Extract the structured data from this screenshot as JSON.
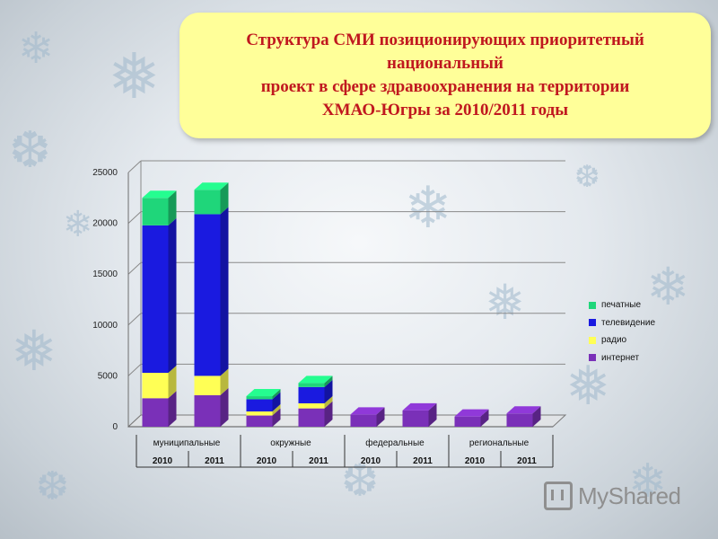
{
  "title_lines": [
    "Структура СМИ позиционирующих приоритетный",
    "национальный",
    "проект в сфере здравоохранения на территории",
    "ХМАО-Югры за 2010/2011 годы"
  ],
  "colors": {
    "title": "#c0181f",
    "title_box": "#ffff99",
    "печатные": "#1fd67a",
    "телевидение": "#1a1ae0",
    "радио": "#ffff55",
    "интернет": "#7a30b8"
  },
  "watermark_text": "MyShared",
  "chart_data": {
    "type": "bar",
    "stacked": true,
    "three_d": true,
    "group_labels": [
      "муниципальные",
      "окружные",
      "федеральные",
      "региональные"
    ],
    "categories": [
      "2010",
      "2011",
      "2010",
      "2011",
      "2010",
      "2011",
      "2010",
      "2011"
    ],
    "series": [
      {
        "name": "интернет",
        "values": [
          2800,
          3100,
          1100,
          1800,
          1200,
          1600,
          1000,
          1300
        ]
      },
      {
        "name": "радио",
        "values": [
          2500,
          1900,
          400,
          500,
          0,
          0,
          0,
          0
        ]
      },
      {
        "name": "телевидение",
        "values": [
          14500,
          15900,
          1200,
          1600,
          0,
          0,
          0,
          0
        ]
      },
      {
        "name": "печатные",
        "values": [
          2700,
          2400,
          300,
          400,
          0,
          0,
          0,
          0
        ]
      }
    ],
    "legend_order": [
      "печатные",
      "телевидение",
      "радио",
      "интернет"
    ],
    "y_ticks": [
      "0",
      "5000",
      "10000",
      "15000",
      "20000",
      "25000"
    ],
    "ylim": [
      0,
      25000
    ],
    "grid": true,
    "legend_position": "right"
  }
}
